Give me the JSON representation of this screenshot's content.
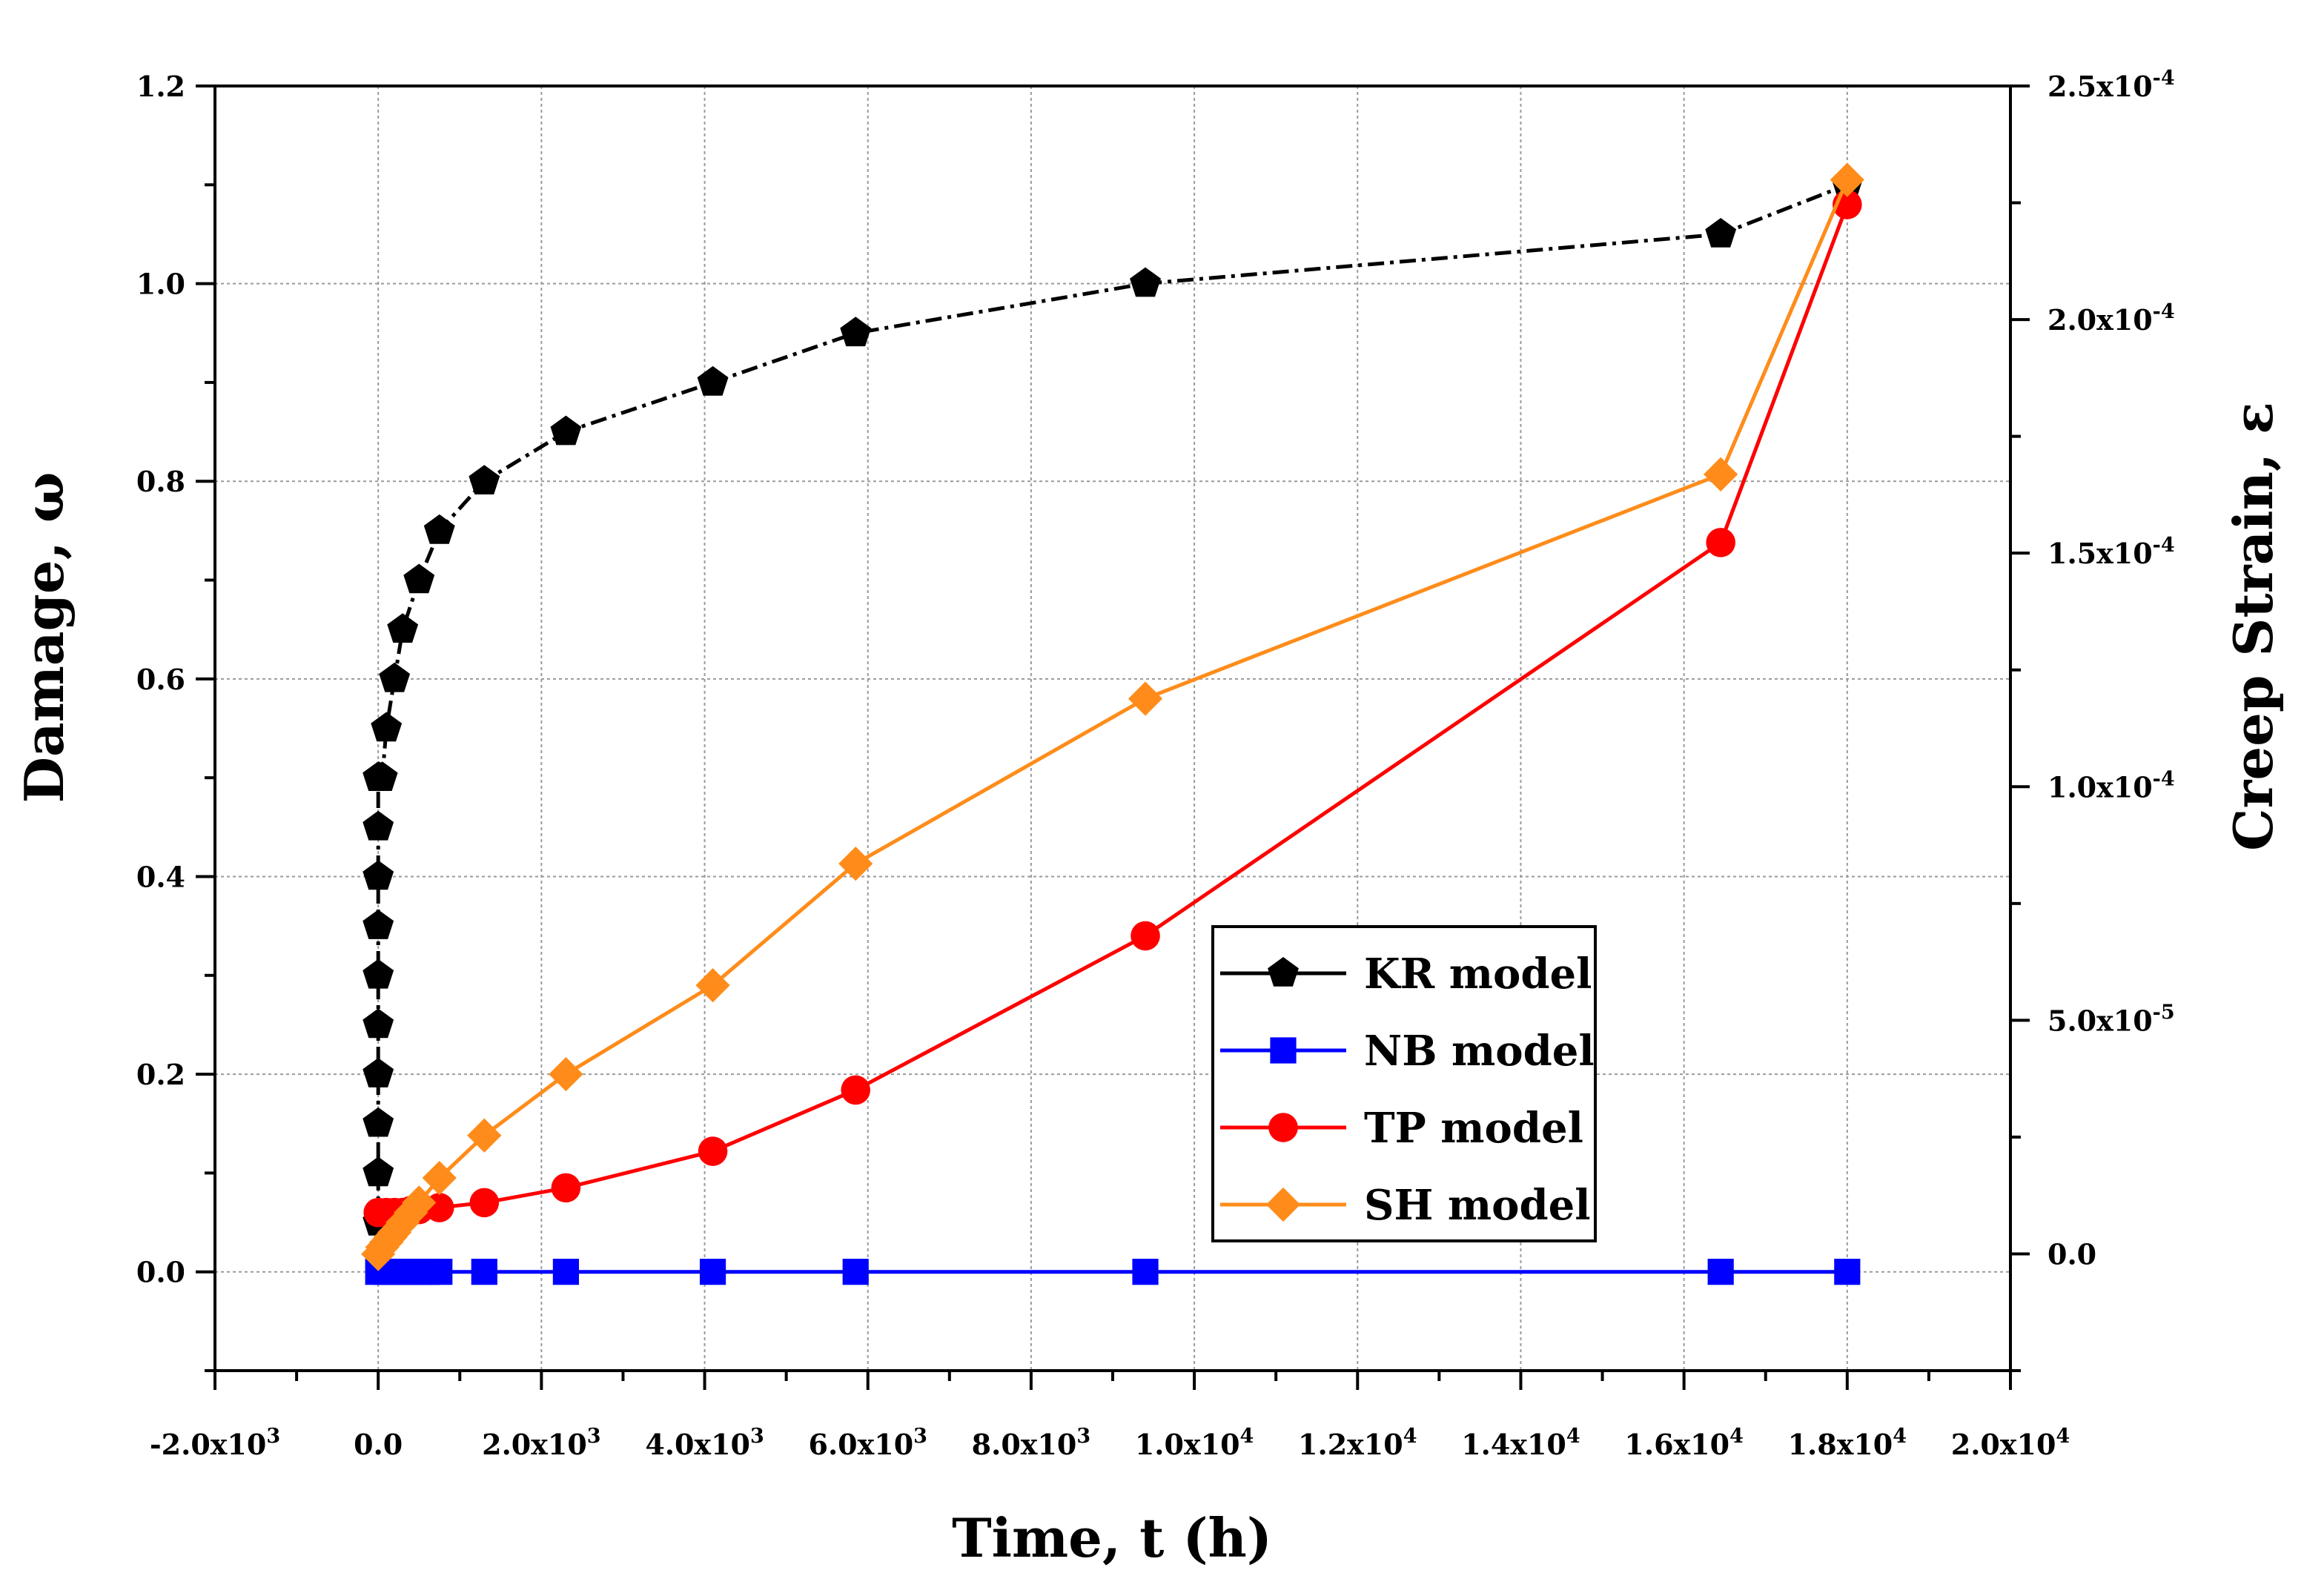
{
  "chart_data": {
    "type": "line",
    "xlabel": "Time, t (h)",
    "ylabel_left": "Damage, ω",
    "ylabel_right": "Creep Strain, ε",
    "xlim": [
      -2000,
      20000
    ],
    "ylim_left": [
      -0.1,
      1.2
    ],
    "ylim_right": [
      -2.5e-05,
      0.00025
    ],
    "x_ticks": [
      {
        "value": -2000,
        "mantissa": "-2.0x10",
        "exp": "3"
      },
      {
        "value": 0,
        "mantissa": "0.0",
        "exp": ""
      },
      {
        "value": 2000,
        "mantissa": "2.0x10",
        "exp": "3"
      },
      {
        "value": 4000,
        "mantissa": "4.0x10",
        "exp": "3"
      },
      {
        "value": 6000,
        "mantissa": "6.0x10",
        "exp": "3"
      },
      {
        "value": 8000,
        "mantissa": "8.0x10",
        "exp": "3"
      },
      {
        "value": 10000,
        "mantissa": "1.0x10",
        "exp": "4"
      },
      {
        "value": 12000,
        "mantissa": "1.2x10",
        "exp": "4"
      },
      {
        "value": 14000,
        "mantissa": "1.4x10",
        "exp": "4"
      },
      {
        "value": 16000,
        "mantissa": "1.6x10",
        "exp": "4"
      },
      {
        "value": 18000,
        "mantissa": "1.8x10",
        "exp": "4"
      },
      {
        "value": 20000,
        "mantissa": "2.0x10",
        "exp": "4"
      }
    ],
    "y_left_ticks": [
      {
        "value": 0.0,
        "label": "0.0"
      },
      {
        "value": 0.2,
        "label": "0.2"
      },
      {
        "value": 0.4,
        "label": "0.4"
      },
      {
        "value": 0.6,
        "label": "0.6"
      },
      {
        "value": 0.8,
        "label": "0.8"
      },
      {
        "value": 1.0,
        "label": "1.0"
      },
      {
        "value": 1.2,
        "label": "1.2"
      }
    ],
    "y_right_ticks": [
      {
        "value": 0.0,
        "mantissa": "0.0",
        "exp": ""
      },
      {
        "value": 5e-05,
        "mantissa": "5.0x10",
        "exp": "-5"
      },
      {
        "value": 0.0001,
        "mantissa": "1.0x10",
        "exp": "-4"
      },
      {
        "value": 0.00015,
        "mantissa": "1.5x10",
        "exp": "-4"
      },
      {
        "value": 0.0002,
        "mantissa": "2.0x10",
        "exp": "-4"
      },
      {
        "value": 0.00025,
        "mantissa": "2.5x10",
        "exp": "-4"
      }
    ],
    "series": [
      {
        "name": "KR model",
        "color": "#000000",
        "marker": "pentagon",
        "style": "dash-dot",
        "x": [
          0,
          0,
          0,
          0,
          0,
          0,
          0,
          0,
          0,
          0,
          0,
          10,
          50,
          100,
          200,
          300,
          500,
          750,
          1300,
          2300,
          4100,
          5850,
          9400,
          16450,
          18000
        ],
        "y": [
          0.05,
          0.1,
          0.15,
          0.2,
          0.25,
          0.3,
          0.35,
          0.4,
          0.45,
          0.5,
          0.5,
          0.5,
          0.5,
          0.55,
          0.6,
          0.65,
          0.7,
          0.75,
          0.8,
          0.85,
          0.9,
          0.95,
          1.0,
          1.05,
          1.1
        ]
      },
      {
        "name": "NB model",
        "color": "#0000ff",
        "marker": "square",
        "style": "solid",
        "x": [
          0,
          100,
          200,
          300,
          400,
          500,
          600,
          750,
          1300,
          2300,
          4100,
          5850,
          9400,
          16450,
          18000
        ],
        "y": [
          0,
          0,
          0,
          0,
          0,
          0,
          0,
          0,
          0,
          0,
          0,
          0,
          0,
          0,
          0
        ]
      },
      {
        "name": "TP model",
        "color": "#ff0000",
        "marker": "circle",
        "style": "solid",
        "x": [
          0,
          100,
          200,
          300,
          400,
          500,
          750,
          1300,
          2300,
          4100,
          5850,
          9400,
          16450,
          18000
        ],
        "y": [
          0.06,
          0.06,
          0.06,
          0.06,
          0.062,
          0.063,
          0.065,
          0.07,
          0.085,
          0.122,
          0.184,
          0.34,
          0.738,
          1.08
        ]
      },
      {
        "name": "SH model",
        "color": "#ff8c1a",
        "marker": "diamond",
        "style": "solid",
        "x": [
          0,
          50,
          100,
          150,
          200,
          300,
          400,
          500,
          750,
          1300,
          2300,
          4100,
          5850,
          9400,
          16450,
          18000
        ],
        "y": [
          0.018,
          0.025,
          0.03,
          0.035,
          0.04,
          0.05,
          0.06,
          0.07,
          0.095,
          0.138,
          0.2,
          0.29,
          0.413,
          0.58,
          0.807,
          1.105
        ]
      }
    ],
    "legend": {
      "position": "lower-right",
      "entries": [
        "KR model",
        "NB model",
        "TP model",
        "SH model"
      ]
    },
    "grid": true
  }
}
